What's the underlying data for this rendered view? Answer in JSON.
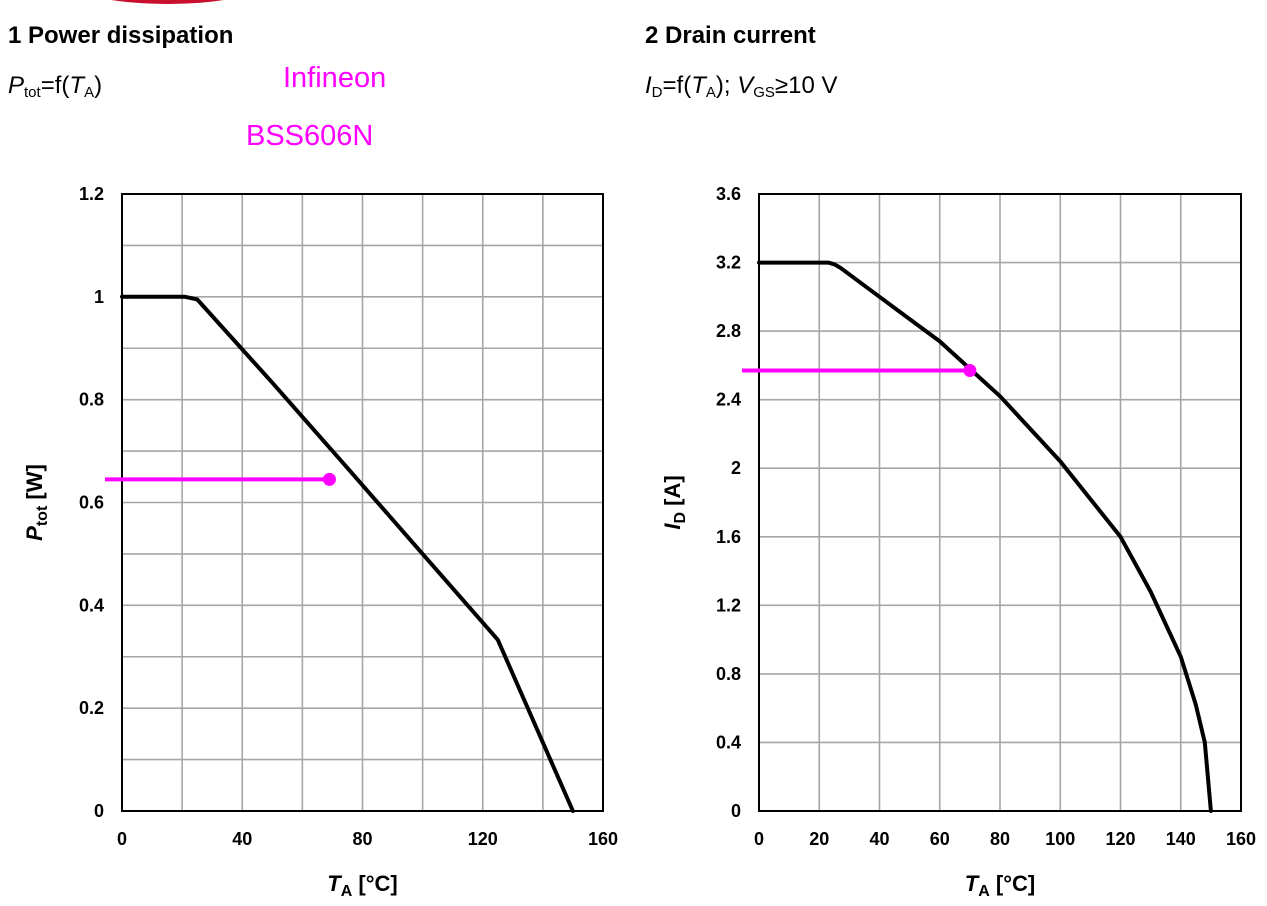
{
  "header": {
    "chart1_title": "1 Power dissipation",
    "chart2_title": "2 Drain current",
    "brand": "Infineon",
    "part": "BSS606N",
    "chart1_formula": {
      "sym": "P",
      "sub": "tot",
      "mid": "=f(",
      "sym2": "T",
      "sub2": "A",
      "end": ")"
    },
    "chart2_formula": {
      "sym": "I",
      "sub": "D",
      "mid": "=f(",
      "sym2": "T",
      "sub2": "A",
      "mid2": "); ",
      "sym3": "V",
      "sub3": "GS",
      "end": "≥10 V"
    }
  },
  "colors": {
    "curve": "#000000",
    "marker": "#ff00ff",
    "grid": "#a6a6a6",
    "logo": "#c8102e"
  },
  "chart_data": [
    {
      "type": "line",
      "title": "1 Power dissipation",
      "xlabel": {
        "sym": "T",
        "sub": "A",
        "unit": " [°C]"
      },
      "ylabel": {
        "sym": "P",
        "sub": "tot",
        "unit": " [W]"
      },
      "xlim": [
        0,
        160
      ],
      "ylim": [
        0,
        1.2
      ],
      "x_ticks": [
        "0",
        "40",
        "80",
        "120",
        "160"
      ],
      "x_tick_values": [
        0,
        40,
        80,
        120,
        160
      ],
      "y_ticks": [
        "0",
        "0.2",
        "0.4",
        "0.6",
        "0.8",
        "1",
        "1.2"
      ],
      "y_tick_values": [
        0,
        0.2,
        0.4,
        0.6,
        0.8,
        1.0,
        1.2
      ],
      "x_grid_step": 20,
      "y_grid_step": 0.1,
      "grid": true,
      "series": [
        {
          "x": [
            0,
            21,
            25,
            50,
            75,
            100,
            125,
            150
          ],
          "y": [
            1.0,
            1.0,
            0.995,
            0.833,
            0.667,
            0.5,
            0.333,
            0.0
          ]
        }
      ],
      "marker": {
        "x": 69,
        "y": 0.645
      }
    },
    {
      "type": "line",
      "title": "2 Drain current",
      "xlabel": {
        "sym": "T",
        "sub": "A",
        "unit": " [°C]"
      },
      "ylabel": {
        "sym": "I",
        "sub": "D",
        "unit": " [A]"
      },
      "xlim": [
        0,
        160
      ],
      "ylim": [
        0,
        3.6
      ],
      "x_ticks": [
        "0",
        "20",
        "40",
        "60",
        "80",
        "100",
        "120",
        "140",
        "160"
      ],
      "x_tick_values": [
        0,
        20,
        40,
        60,
        80,
        100,
        120,
        140,
        160
      ],
      "y_ticks": [
        "0",
        "0.4",
        "0.8",
        "1.2",
        "1.6",
        "2",
        "2.4",
        "2.8",
        "3.2",
        "3.6"
      ],
      "y_tick_values": [
        0,
        0.4,
        0.8,
        1.2,
        1.6,
        2.0,
        2.4,
        2.8,
        3.2,
        3.6
      ],
      "x_grid_step": 20,
      "y_grid_step": 0.4,
      "grid": true,
      "series": [
        {
          "x": [
            0,
            23,
            25,
            27,
            40,
            60,
            80,
            100,
            120,
            130,
            140,
            145,
            148,
            150
          ],
          "y": [
            3.2,
            3.2,
            3.19,
            3.17,
            3.0,
            2.74,
            2.42,
            2.04,
            1.6,
            1.28,
            0.9,
            0.62,
            0.4,
            0.0
          ]
        }
      ],
      "marker": {
        "x": 70,
        "y": 2.57
      }
    }
  ]
}
